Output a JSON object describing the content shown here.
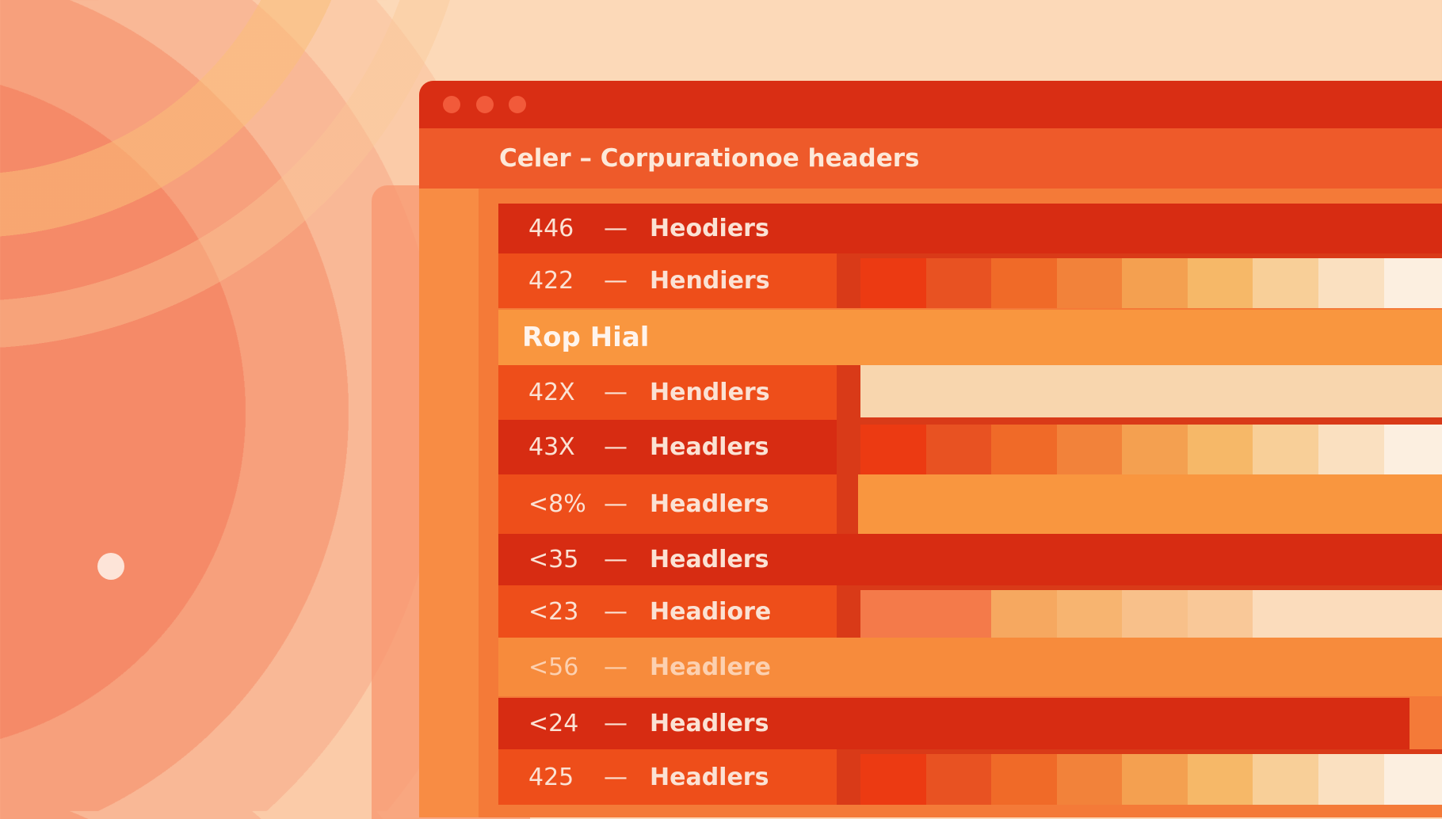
{
  "window": {
    "title": "Celer – Corpurationoe headers",
    "dots": [
      "close",
      "minimize",
      "maximize"
    ]
  },
  "colors": {
    "dark": "#d72c12",
    "mid": "#ee4e1a",
    "light": "#f78b3c",
    "section": "#f9963f",
    "pale": "#f8d6ae",
    "gap": "#d93a18"
  },
  "section_label": "Rop Hial",
  "rows": [
    {
      "num": "446",
      "sep": "—",
      "label": "Heodiers",
      "style": "dark",
      "right": "none"
    },
    {
      "num": "422",
      "sep": "—",
      "label": "Hendiers",
      "style": "mid",
      "right": "swatches"
    },
    {
      "num": "",
      "sep": "",
      "label": "Rop Hial",
      "style": "section",
      "right": "none"
    },
    {
      "num": "42X",
      "sep": "—",
      "label": "Hendlers",
      "style": "mid",
      "right": "pale"
    },
    {
      "num": "43X",
      "sep": "—",
      "label": "Headlers",
      "style": "dark",
      "right": "swatches"
    },
    {
      "num": "<8%",
      "sep": "—",
      "label": "Headlers",
      "style": "mid",
      "right": "orange"
    },
    {
      "num": "<35",
      "sep": "—",
      "label": "Headlers",
      "style": "dark",
      "right": "none"
    },
    {
      "num": "<23",
      "sep": "—",
      "label": "Headiore",
      "style": "mid",
      "right": "faded"
    },
    {
      "num": "<56",
      "sep": "—",
      "label": "Headlere",
      "style": "light",
      "right": "none"
    },
    {
      "num": "<24",
      "sep": "—",
      "label": "Headlers",
      "style": "dark",
      "right": "none"
    },
    {
      "num": "425",
      "sep": "—",
      "label": "Headlers",
      "style": "mid",
      "right": "swatches"
    }
  ],
  "swatch_colors": [
    "#ec3a12",
    "#e85222",
    "#f06a28",
    "#f2823a",
    "#f4a050",
    "#f6b868",
    "#f8cf98",
    "#fae0c0",
    "#fcefe0"
  ],
  "faded_colors": [
    "#f47a4a",
    "#f47a4a",
    "#f6a860",
    "#f7b470",
    "#f8c08a",
    "#f9c898",
    "#fbdcbc",
    "#fbdcbc",
    "#fbdcbc"
  ]
}
